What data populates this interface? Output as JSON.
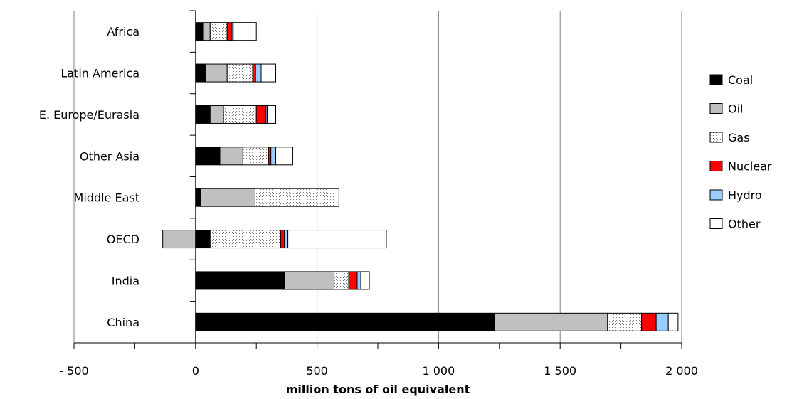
{
  "chart_data": {
    "type": "bar",
    "orientation": "horizontal",
    "stacked": true,
    "categories": [
      "Africa",
      "Latin America",
      "E. Europe/Eurasia",
      "Other Asia",
      "Middle East",
      "OECD",
      "India",
      "China"
    ],
    "series": [
      {
        "name": "Coal",
        "color": "#000000",
        "pattern": "solid",
        "values": [
          30,
          40,
          60,
          100,
          20,
          60,
          365,
          1230
        ]
      },
      {
        "name": "Oil",
        "color": "#c0c0c0",
        "pattern": "solid",
        "values": [
          30,
          90,
          55,
          95,
          225,
          -135,
          205,
          465
        ]
      },
      {
        "name": "Gas",
        "color": "#ffffff",
        "pattern": "dotted",
        "values": [
          70,
          105,
          135,
          105,
          325,
          290,
          60,
          140
        ]
      },
      {
        "name": "Nuclear",
        "color": "#ff0000",
        "pattern": "solid",
        "values": [
          20,
          12,
          40,
          10,
          0,
          15,
          35,
          60
        ]
      },
      {
        "name": "Hydro",
        "color": "#99ccff",
        "pattern": "solid",
        "values": [
          5,
          23,
          5,
          20,
          0,
          15,
          15,
          50
        ]
      },
      {
        "name": "Other",
        "color": "#ffffff",
        "pattern": "solid",
        "values": [
          95,
          60,
          35,
          70,
          20,
          405,
          35,
          40
        ]
      }
    ],
    "xlabel": "million tons of oil equivalent",
    "xlim": [
      -500,
      2000
    ],
    "xticks": [
      -500,
      0,
      500,
      1000,
      1500,
      2000
    ],
    "xtick_labels": [
      "- 500",
      "0",
      "500",
      "1 000",
      "1 500",
      "2 000"
    ],
    "grid": "vertical",
    "legend_position": "right"
  }
}
